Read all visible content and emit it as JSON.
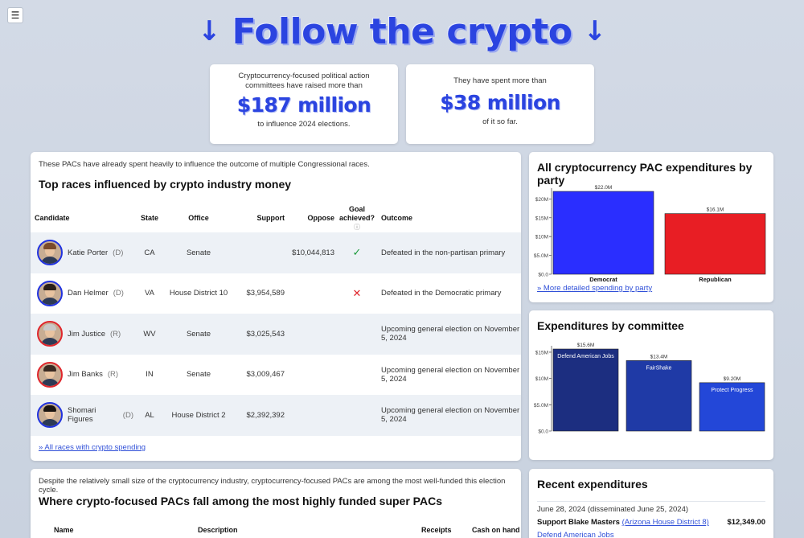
{
  "menu": {
    "icon": "hamburger-menu-icon",
    "glyph": "☰"
  },
  "hero": {
    "title": "Follow the crypto",
    "arrow": "↓"
  },
  "stats": [
    {
      "pre": "Cryptocurrency-focused political action committees have raised more than",
      "big": "$187 million",
      "post": "to influence 2024 elections."
    },
    {
      "pre": "They have spent more than",
      "big": "$38 million",
      "post": "of it so far."
    }
  ],
  "races": {
    "intro": "These PACs have already spent heavily to influence the outcome of multiple Congressional races.",
    "heading": "Top races influenced by crypto industry money",
    "columns": {
      "candidate": "Candidate",
      "state": "State",
      "office": "Office",
      "support": "Support",
      "oppose": "Oppose",
      "goal": "Goal achieved?",
      "goal_info": "ⓘ",
      "outcome": "Outcome"
    },
    "rows": [
      {
        "name": "Katie Porter",
        "party": "(D)",
        "state": "CA",
        "office": "Senate",
        "support": "",
        "oppose": "$10,044,813",
        "goal": "✓",
        "goal_type": "check",
        "outcome": "Defeated in the non-partisan primary",
        "ring": "#2133e0",
        "hair": "#7a4a2a"
      },
      {
        "name": "Dan Helmer",
        "party": "(D)",
        "state": "VA",
        "office": "House District 10",
        "support": "$3,954,589",
        "oppose": "",
        "goal": "✕",
        "goal_type": "cross",
        "outcome": "Defeated in the Democratic primary",
        "ring": "#2133e0",
        "hair": "#2a1e18"
      },
      {
        "name": "Jim Justice",
        "party": "(R)",
        "state": "WV",
        "office": "Senate",
        "support": "$3,025,543",
        "oppose": "",
        "goal": "",
        "goal_type": "",
        "outcome": "Upcoming general election on November 5, 2024",
        "ring": "#e0262c",
        "hair": "#c9c9c9"
      },
      {
        "name": "Jim Banks",
        "party": "(R)",
        "state": "IN",
        "office": "Senate",
        "support": "$3,009,467",
        "oppose": "",
        "goal": "",
        "goal_type": "",
        "outcome": "Upcoming general election on November 5, 2024",
        "ring": "#e0262c",
        "hair": "#3a2a22"
      },
      {
        "name": "Shomari Figures",
        "party": "(D)",
        "state": "AL",
        "office": "House District 2",
        "support": "$2,392,392",
        "oppose": "",
        "goal": "",
        "goal_type": "",
        "outcome": "Upcoming general election on November 5, 2024",
        "ring": "#2133e0",
        "hair": "#1a1410"
      }
    ],
    "more_link": "» All races with crypto spending"
  },
  "super_pacs": {
    "intro": "Despite the relatively small size of the cryptocurrency industry, cryptocurrency-focused PACs are among the most well-funded this election cycle.",
    "heading": "Where crypto-focused PACs fall among the most highly funded super PACs",
    "columns": {
      "name": "Name",
      "description": "Description",
      "receipts": "Receipts",
      "cash": "Cash on hand"
    }
  },
  "party_chart": {
    "heading": "All cryptocurrency PAC expenditures by party",
    "more_link": "» More detailed spending by party",
    "chart_data": {
      "type": "bar",
      "categories": [
        "Democrat",
        "Republican"
      ],
      "values": [
        22.0,
        16.1
      ],
      "data_labels": [
        "$22.0M",
        "$16.1M"
      ],
      "colors": [
        "#2a2eff",
        "#e81e24"
      ],
      "ylim": [
        0,
        22
      ],
      "yticks": [
        0,
        5,
        10,
        15,
        20
      ],
      "ytick_labels": [
        "$0.0",
        "$5.0M",
        "$10M",
        "$15M",
        "$20M"
      ],
      "grid": false,
      "legend": "none"
    }
  },
  "committee_chart": {
    "heading": "Expenditures by committee",
    "chart_data": {
      "type": "bar",
      "categories": [
        "Defend American Jobs",
        "FairShake",
        "Protect Progress"
      ],
      "values": [
        15.6,
        13.4,
        9.2
      ],
      "data_labels": [
        "$15.6M",
        "$13.4M",
        "$9.20M"
      ],
      "colors": [
        "#1c2e80",
        "#1f3aa6",
        "#2347d8"
      ],
      "ylim": [
        0,
        15.6
      ],
      "yticks": [
        0,
        5,
        10,
        15
      ],
      "ytick_labels": [
        "$0.0",
        "$5.0M",
        "$10M",
        "$15M"
      ],
      "grid": false,
      "legend": "none"
    }
  },
  "recent": {
    "heading": "Recent expenditures",
    "items": [
      {
        "date": "June 28, 2024 (disseminated June 25, 2024)",
        "desc_prefix": "Support Blake Masters",
        "desc_link": "(Arizona House District 8)",
        "amount": "$12,349.00",
        "committee": "Defend American Jobs"
      }
    ]
  }
}
